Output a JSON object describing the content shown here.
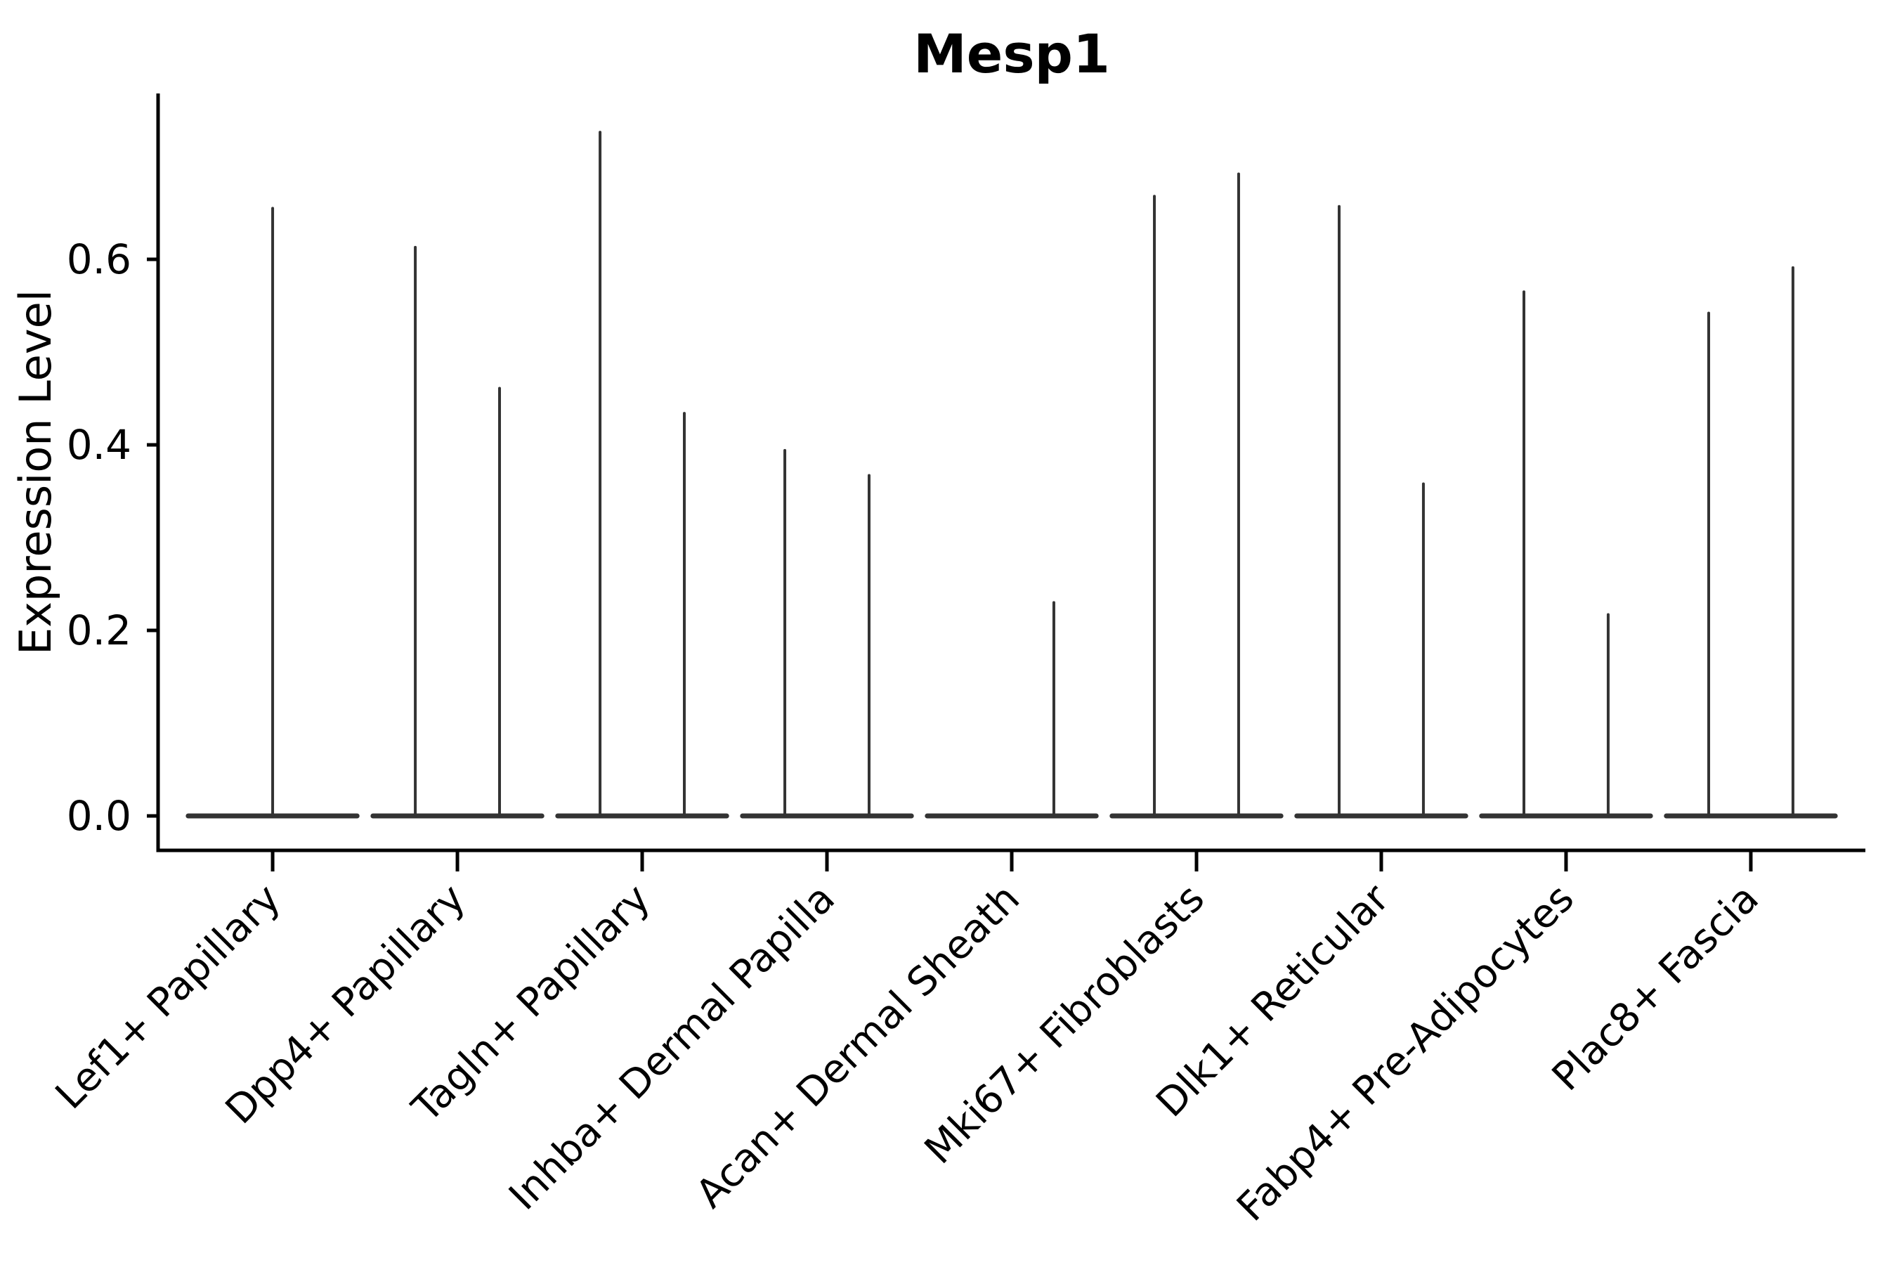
{
  "title": "Mesp1",
  "ylabel": "Expression Level",
  "colors": {
    "violin": "#333333",
    "axis": "#000000",
    "text": "#000000",
    "background": "#ffffff"
  },
  "chart_data": {
    "type": "violin",
    "title": "Mesp1",
    "xlabel": "",
    "ylabel": "Expression Level",
    "ylim": [
      -0.037,
      0.777
    ],
    "yticks": [
      {
        "value": 0.0,
        "label": "0.0"
      },
      {
        "value": 0.2,
        "label": "0.2"
      },
      {
        "value": 0.4,
        "label": "0.4"
      },
      {
        "value": 0.6,
        "label": "0.6"
      }
    ],
    "grid": false,
    "legend": "none",
    "baseline_halfwidth_units": 0.457,
    "categories": [
      "Lef1+ Papillary",
      "Dpp4+ Papillary",
      "Tagln+ Papillary",
      "Inhba+ Dermal Papilla",
      "Acan+ Dermal Sheath",
      "Mki67+ Fibroblasts",
      "Dlk1+ Reticular",
      "Fabp4+ Pre-Adipocytes",
      "Plac8+ Fascia"
    ],
    "series": [
      {
        "category": "Lef1+ Papillary",
        "violins": [
          {
            "pos": 0.0,
            "max": 0.655
          }
        ]
      },
      {
        "category": "Dpp4+ Papillary",
        "violins": [
          {
            "pos": -0.228,
            "max": 0.613
          },
          {
            "pos": 0.228,
            "max": 0.461
          }
        ]
      },
      {
        "category": "Tagln+ Papillary",
        "violins": [
          {
            "pos": -0.228,
            "max": 0.737
          },
          {
            "pos": 0.228,
            "max": 0.434
          }
        ]
      },
      {
        "category": "Inhba+ Dermal Papilla",
        "violins": [
          {
            "pos": -0.228,
            "max": 0.394
          },
          {
            "pos": 0.228,
            "max": 0.367
          }
        ]
      },
      {
        "category": "Acan+ Dermal Sheath",
        "violins": [
          {
            "pos": 0.228,
            "max": 0.23
          }
        ]
      },
      {
        "category": "Mki67+ Fibroblasts",
        "violins": [
          {
            "pos": -0.228,
            "max": 0.668
          },
          {
            "pos": 0.228,
            "max": 0.692
          }
        ]
      },
      {
        "category": "Dlk1+ Reticular",
        "violins": [
          {
            "pos": -0.228,
            "max": 0.657
          },
          {
            "pos": 0.228,
            "max": 0.358
          }
        ]
      },
      {
        "category": "Fabp4+ Pre-Adipocytes",
        "violins": [
          {
            "pos": -0.228,
            "max": 0.565
          },
          {
            "pos": 0.228,
            "max": 0.217
          }
        ]
      },
      {
        "category": "Plac8+ Fascia",
        "violins": [
          {
            "pos": -0.228,
            "max": 0.542
          },
          {
            "pos": 0.228,
            "max": 0.591
          }
        ]
      }
    ]
  }
}
